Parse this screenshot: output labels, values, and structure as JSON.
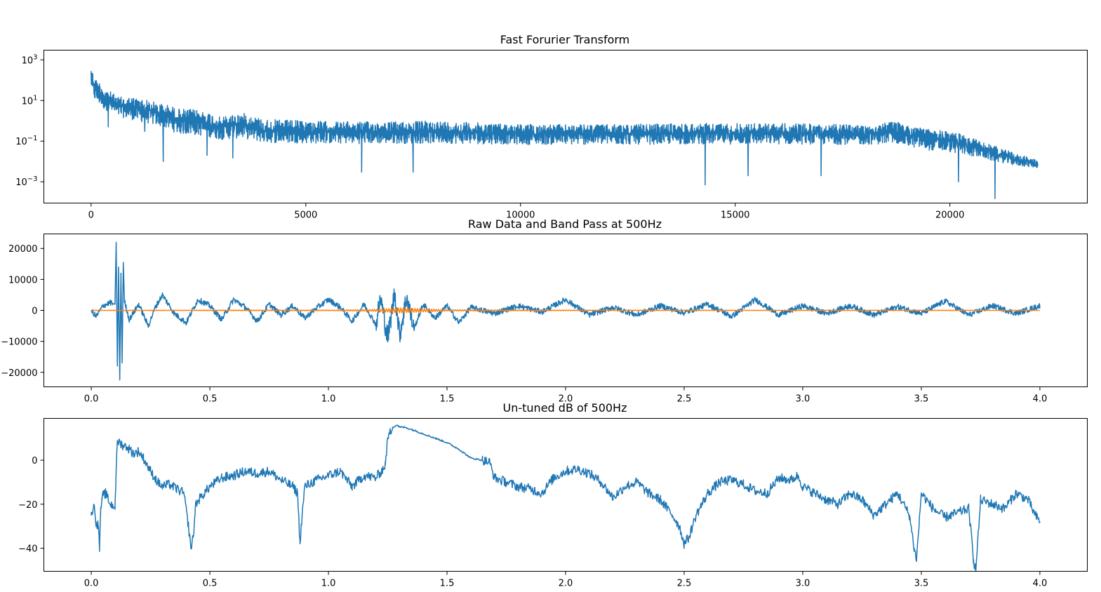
{
  "colors": {
    "series_blue": "#1f77b4",
    "series_orange": "#ff7f0e",
    "axes": "#000000",
    "background": "#ffffff"
  },
  "chart_data": [
    {
      "id": "fft",
      "type": "line",
      "title": "Fast Forurier Transform",
      "xlabel": "",
      "ylabel": "",
      "yscale": "log",
      "xlim": [
        -1100,
        23200
      ],
      "ylim": [
        9e-05,
        3000
      ],
      "grid": false,
      "x_ticks": [
        0,
        5000,
        10000,
        15000,
        20000
      ],
      "x_tick_labels": [
        "0",
        "5000",
        "10000",
        "15000",
        "20000"
      ],
      "y_ticks": [
        1000,
        10,
        0.1,
        0.001
      ],
      "y_tick_labels": [
        {
          "base": "10",
          "exp": "3"
        },
        {
          "base": "10",
          "exp": "1"
        },
        {
          "base": "10",
          "exp": "−1"
        },
        {
          "base": "10",
          "exp": "−3"
        }
      ],
      "series": [
        {
          "color": "#1f77b4",
          "kind": "band",
          "x": [
            0,
            30,
            100,
            300,
            600,
            900,
            1200,
            1500,
            1800,
            2000,
            2500,
            3000,
            3500,
            4000,
            5000,
            6000,
            7000,
            8000,
            9000,
            10000,
            11000,
            12000,
            13000,
            14000,
            15000,
            16000,
            17000,
            18000,
            18800,
            19000,
            19500,
            20000,
            20500,
            21000,
            21500,
            22000,
            22050
          ],
          "upper": [
            800,
            300,
            120,
            40,
            15,
            15,
            12,
            8,
            6,
            4,
            3.5,
            1.5,
            2.5,
            1.2,
            1.0,
            0.9,
            0.9,
            1.0,
            0.8,
            0.7,
            0.65,
            0.65,
            0.7,
            0.75,
            0.75,
            0.75,
            0.7,
            0.65,
            0.9,
            0.6,
            0.4,
            0.3,
            0.15,
            0.06,
            0.025,
            0.012,
            0.012
          ],
          "lower": [
            8,
            3,
            2,
            1,
            0.5,
            0.3,
            0.2,
            0.15,
            0.08,
            0.05,
            0.04,
            0.03,
            0.03,
            0.02,
            0.02,
            0.02,
            0.02,
            0.02,
            0.02,
            0.02,
            0.02,
            0.02,
            0.02,
            0.02,
            0.02,
            0.02,
            0.02,
            0.02,
            0.02,
            0.015,
            0.01,
            0.008,
            0.006,
            0.004,
            0.003,
            0.003,
            0.003
          ],
          "dips": [
            [
              400,
              0.5
            ],
            [
              1250,
              0.3
            ],
            [
              1680,
              0.01
            ],
            [
              2700,
              0.02
            ],
            [
              3300,
              0.015
            ],
            [
              6300,
              0.003
            ],
            [
              7500,
              0.003
            ],
            [
              14300,
              0.0007
            ],
            [
              15300,
              0.002
            ],
            [
              17000,
              0.002
            ],
            [
              20200,
              0.001
            ],
            [
              21050,
              0.00015
            ]
          ]
        }
      ]
    },
    {
      "id": "raw",
      "type": "line",
      "title": "Raw Data and Band Pass at 500Hz",
      "xlabel": "",
      "ylabel": "",
      "xlim": [
        -0.2,
        4.2
      ],
      "ylim": [
        -24700,
        24700
      ],
      "grid": false,
      "x_ticks": [
        0.0,
        0.5,
        1.0,
        1.5,
        2.0,
        2.5,
        3.0,
        3.5,
        4.0
      ],
      "x_tick_labels": [
        "0.0",
        "0.5",
        "1.0",
        "1.5",
        "2.0",
        "2.5",
        "3.0",
        "3.5",
        "4.0"
      ],
      "y_ticks": [
        20000,
        10000,
        0,
        -10000,
        -20000
      ],
      "y_tick_labels": [
        "20000",
        "10000",
        "0",
        "−10000",
        "−20000"
      ],
      "series": [
        {
          "color": "#1f77b4",
          "x": [
            0,
            0.02,
            0.05,
            0.08,
            0.1,
            0.105,
            0.11,
            0.115,
            0.12,
            0.125,
            0.13,
            0.135,
            0.14,
            0.16,
            0.2,
            0.24,
            0.27,
            0.3,
            0.35,
            0.4,
            0.45,
            0.5,
            0.55,
            0.6,
            0.65,
            0.7,
            0.75,
            0.8,
            0.85,
            0.9,
            0.95,
            1.0,
            1.05,
            1.1,
            1.15,
            1.2,
            1.22,
            1.25,
            1.28,
            1.3,
            1.33,
            1.36,
            1.4,
            1.45,
            1.5,
            1.55,
            1.6,
            1.7,
            1.8,
            1.9,
            2.0,
            2.1,
            2.2,
            2.3,
            2.4,
            2.5,
            2.6,
            2.7,
            2.8,
            2.9,
            3.0,
            3.1,
            3.2,
            3.3,
            3.4,
            3.5,
            3.6,
            3.7,
            3.8,
            3.9,
            4.0
          ],
          "y": [
            0,
            -2000,
            1500,
            2500,
            2000,
            22000,
            -18000,
            14000,
            -22500,
            12000,
            -17000,
            15500,
            3000,
            -3000,
            2000,
            -5000,
            1000,
            5000,
            -1000,
            -4000,
            3500,
            1500,
            -3000,
            3500,
            1000,
            -3500,
            2000,
            -1500,
            1500,
            -2500,
            800,
            3500,
            1000,
            -3500,
            2000,
            -4500,
            4000,
            -9000,
            6000,
            -8000,
            4500,
            -6000,
            2000,
            -2500,
            1500,
            -4000,
            1000,
            -1000,
            1500,
            -500,
            3500,
            -1500,
            1000,
            -1500,
            1500,
            -800,
            2000,
            -2000,
            3500,
            -1500,
            1500,
            -1000,
            1500,
            -1500,
            1200,
            -1000,
            3000,
            -1500,
            1500,
            -1000,
            1500
          ]
        },
        {
          "color": "#ff7f0e",
          "x": [
            0,
            0.5,
            1.0,
            1.2,
            1.3,
            1.4,
            1.5,
            2.0,
            2.5,
            3.0,
            3.5,
            4.0
          ],
          "y": [
            0,
            100,
            100,
            300,
            800,
            500,
            200,
            100,
            80,
            60,
            50,
            40
          ]
        }
      ]
    },
    {
      "id": "db",
      "type": "line",
      "title": "Un-tuned dB of 500Hz",
      "xlabel": "",
      "ylabel": "",
      "xlim": [
        -0.2,
        4.2
      ],
      "ylim": [
        -50.5,
        19
      ],
      "grid": false,
      "x_ticks": [
        0.0,
        0.5,
        1.0,
        1.5,
        2.0,
        2.5,
        3.0,
        3.5,
        4.0
      ],
      "x_tick_labels": [
        "0.0",
        "0.5",
        "1.0",
        "1.5",
        "2.0",
        "2.5",
        "3.0",
        "3.5",
        "4.0"
      ],
      "y_ticks": [
        0,
        -20,
        -40
      ],
      "y_tick_labels": [
        "0",
        "−20",
        "−40"
      ],
      "series": [
        {
          "color": "#1f77b4",
          "x": [
            0.0,
            0.01,
            0.02,
            0.03,
            0.035,
            0.04,
            0.045,
            0.05,
            0.06,
            0.08,
            0.1,
            0.102,
            0.11,
            0.13,
            0.15,
            0.18,
            0.2,
            0.22,
            0.25,
            0.28,
            0.3,
            0.33,
            0.36,
            0.39,
            0.41,
            0.42,
            0.43,
            0.44,
            0.46,
            0.5,
            0.55,
            0.6,
            0.65,
            0.7,
            0.75,
            0.8,
            0.85,
            0.87,
            0.88,
            0.885,
            0.9,
            0.95,
            1.0,
            1.05,
            1.1,
            1.15,
            1.2,
            1.23,
            1.24,
            1.25,
            1.27,
            1.29,
            1.3,
            1.32,
            1.35,
            1.4,
            1.45,
            1.5,
            1.55,
            1.6,
            1.65,
            1.68,
            1.7,
            1.75,
            1.8,
            1.85,
            1.9,
            1.95,
            2.0,
            2.05,
            2.1,
            2.15,
            2.2,
            2.25,
            2.3,
            2.35,
            2.4,
            2.45,
            2.48,
            2.5,
            2.52,
            2.55,
            2.6,
            2.65,
            2.7,
            2.75,
            2.8,
            2.85,
            2.9,
            2.95,
            2.98,
            3.0,
            3.05,
            3.1,
            3.15,
            3.2,
            3.25,
            3.3,
            3.35,
            3.4,
            3.45,
            3.47,
            3.48,
            3.5,
            3.55,
            3.6,
            3.65,
            3.7,
            3.72,
            3.73,
            3.75,
            3.8,
            3.85,
            3.9,
            3.95,
            3.98,
            4.0
          ],
          "y": [
            -25,
            -20,
            -28,
            -30,
            -40,
            -22,
            -18,
            -16,
            -15,
            -20,
            -21,
            -15,
            9,
            7,
            6,
            3,
            4,
            1,
            -5,
            -10,
            -12,
            -11,
            -13,
            -15,
            -30,
            -40,
            -35,
            -20,
            -17,
            -12,
            -8,
            -7,
            -5,
            -6,
            -5,
            -9,
            -12,
            -15,
            -38,
            -30,
            -12,
            -9,
            -7,
            -5,
            -12,
            -7,
            -8,
            -4,
            -2,
            10,
            15,
            16,
            15,
            15,
            14,
            12,
            10,
            8,
            5,
            1,
            0,
            -1,
            -8,
            -10,
            -12,
            -13,
            -15,
            -8,
            -5,
            -4,
            -6,
            -10,
            -17,
            -12,
            -10,
            -15,
            -18,
            -25,
            -30,
            -38,
            -35,
            -25,
            -15,
            -10,
            -9,
            -11,
            -14,
            -15,
            -8,
            -9,
            -7,
            -12,
            -15,
            -18,
            -20,
            -15,
            -18,
            -25,
            -20,
            -15,
            -25,
            -40,
            -45,
            -15,
            -22,
            -26,
            -24,
            -22,
            -45,
            -50,
            -18,
            -20,
            -22,
            -15,
            -18,
            -25,
            -28
          ]
        }
      ]
    }
  ]
}
